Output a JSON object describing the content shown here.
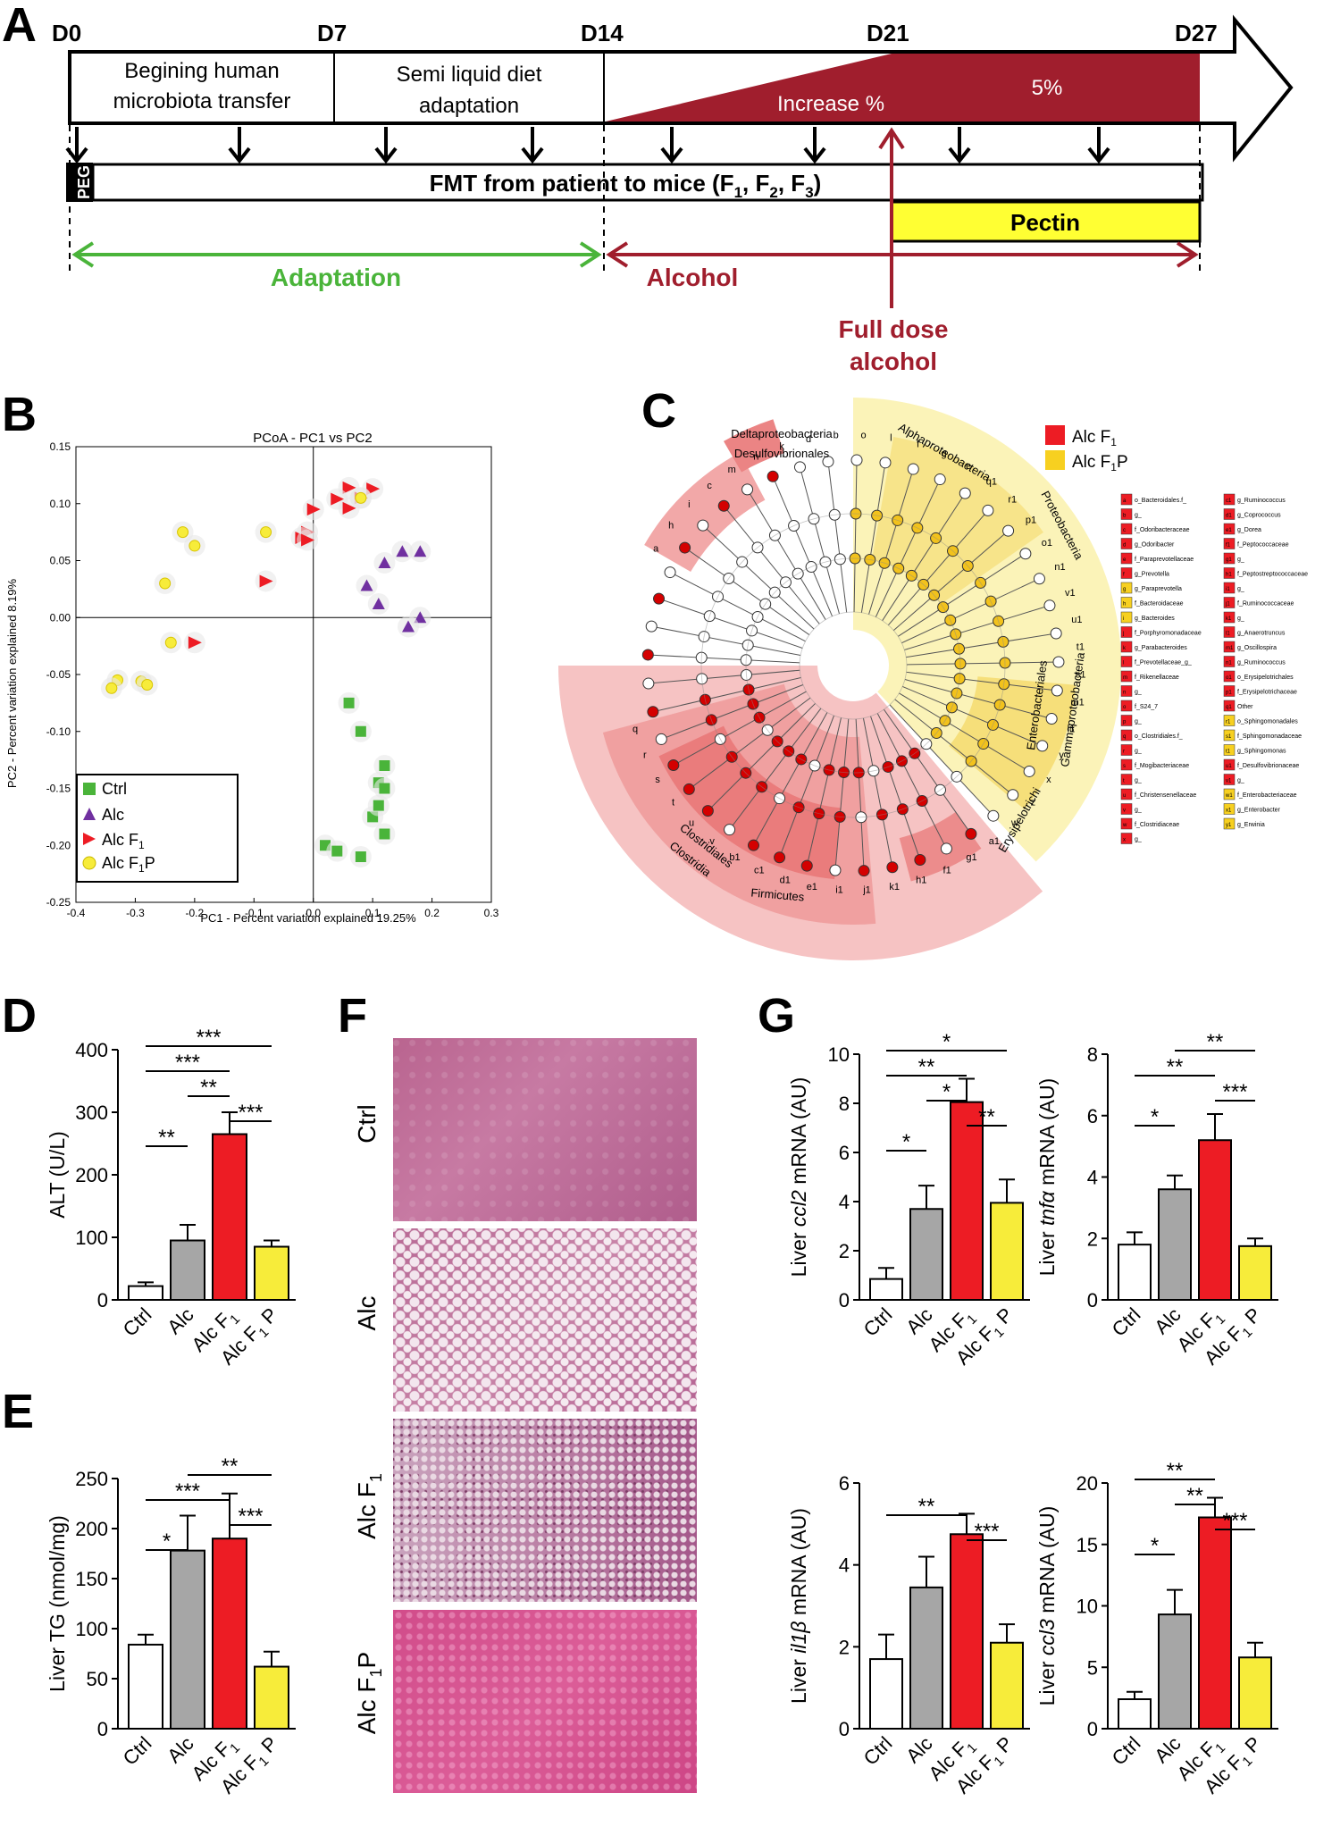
{
  "panels": {
    "A": "A",
    "B": "B",
    "C": "C",
    "D": "D",
    "E": "E",
    "F": "F",
    "G": "G"
  },
  "timeline": {
    "days": [
      "D0",
      "D7",
      "D14",
      "D21",
      "D27"
    ],
    "phase1": [
      "Begining human",
      "microbiota transfer"
    ],
    "phase2": [
      "Semi liquid diet",
      "adaptation"
    ],
    "increase": "Increase %",
    "five": "5%",
    "peg": "PEG",
    "fmt": "FMT from patient to mice (F",
    "fmt_sub": [
      "1",
      "2",
      "3"
    ],
    "pectin": "Pectin",
    "adaptation": "Adaptation",
    "alcohol": "Alcohol",
    "full_dose": [
      "Full dose",
      "alcohol"
    ]
  },
  "colors": {
    "ctrl": "#ffffff",
    "alc": "#a6a6a6",
    "alc_f1": "#ed1c24",
    "alc_f1p": "#f7ec3a",
    "green": "#4ab43a",
    "purple": "#7030a0",
    "darkred": "#a01e2d",
    "yellow": "#ffff33"
  },
  "labels": {
    "ctrl": "Ctrl",
    "alc": "Alc",
    "alc_f1": "Alc F",
    "alc_f1p": "Alc F",
    "sub1": "1",
    "p": "P",
    "p_sp": " P"
  },
  "chart_data": [
    {
      "id": "B",
      "type": "scatter",
      "title": "PCoA - PC1 vs PC2",
      "xlabel": "PC1 - Percent variation explained 19.25%",
      "ylabel": "PC2 - Percent variation explained 8.19%",
      "xlim": [
        -0.4,
        0.3
      ],
      "ylim": [
        -0.25,
        0.15
      ],
      "xticks": [
        "-0.4",
        "-0.3",
        "-0.2",
        "-0.1",
        "0.0",
        "0.1",
        "0.2",
        "0.3"
      ],
      "yticks": [
        "0.15",
        "0.10",
        "0.05",
        "0.00",
        "-0.05",
        "-0.10",
        "-0.15",
        "-0.20",
        "-0.25"
      ],
      "legend": [
        "Ctrl",
        "Alc",
        "Alc F",
        "Alc F"
      ],
      "series": [
        {
          "name": "Ctrl",
          "points": [
            [
              0.06,
              -0.075
            ],
            [
              0.08,
              -0.1
            ],
            [
              0.12,
              -0.13
            ],
            [
              0.11,
              -0.145
            ],
            [
              0.12,
              -0.15
            ],
            [
              0.1,
              -0.175
            ],
            [
              0.12,
              -0.19
            ],
            [
              0.02,
              -0.2
            ],
            [
              0.04,
              -0.205
            ],
            [
              0.08,
              -0.21
            ],
            [
              0.11,
              -0.165
            ]
          ]
        },
        {
          "name": "Alc",
          "points": [
            [
              0.15,
              0.058
            ],
            [
              0.18,
              0.058
            ],
            [
              0.12,
              0.048
            ],
            [
              0.09,
              0.028
            ],
            [
              0.18,
              0.0
            ],
            [
              0.16,
              -0.008
            ],
            [
              0.11,
              0.012
            ]
          ]
        },
        {
          "name": "Alc F1",
          "points": [
            [
              0.06,
              0.114
            ],
            [
              0.1,
              0.113
            ],
            [
              0.08,
              0.105
            ],
            [
              0.04,
              0.104
            ],
            [
              0.0,
              0.095
            ],
            [
              0.06,
              0.096
            ],
            [
              -0.01,
              0.075
            ],
            [
              -0.02,
              0.07
            ],
            [
              -0.01,
              0.068
            ],
            [
              -0.08,
              0.032
            ],
            [
              -0.2,
              -0.022
            ]
          ]
        },
        {
          "name": "Alc F1P",
          "points": [
            [
              -0.22,
              0.075
            ],
            [
              -0.2,
              0.063
            ],
            [
              -0.08,
              0.075
            ],
            [
              -0.25,
              0.03
            ],
            [
              -0.24,
              -0.022
            ],
            [
              -0.33,
              -0.055
            ],
            [
              -0.34,
              -0.062
            ],
            [
              -0.29,
              -0.056
            ],
            [
              -0.28,
              -0.059
            ],
            [
              0.08,
              0.105
            ]
          ]
        }
      ]
    },
    {
      "id": "D",
      "type": "bar",
      "ylabel": "ALT (U/L)",
      "ylim": [
        0,
        400
      ],
      "yticks": [
        "0",
        "100",
        "200",
        "300",
        "400"
      ],
      "categories": [
        "Ctrl",
        "Alc",
        "Alc F1",
        "Alc F1 P"
      ],
      "values": [
        22,
        95,
        265,
        85
      ],
      "errors": [
        6,
        25,
        35,
        10
      ],
      "significance": [
        {
          "from": 0,
          "to": 3,
          "label": "***"
        },
        {
          "from": 0,
          "to": 2,
          "label": "***"
        },
        {
          "from": 1,
          "to": 2,
          "label": "**"
        },
        {
          "from": 2,
          "to": 3,
          "label": "***"
        },
        {
          "from": 0,
          "to": 1,
          "label": "**"
        }
      ]
    },
    {
      "id": "E",
      "type": "bar",
      "ylabel": "Liver TG (nmol/mg)",
      "ylim": [
        0,
        250
      ],
      "yticks": [
        "0",
        "50",
        "100",
        "150",
        "200",
        "250"
      ],
      "categories": [
        "Ctrl",
        "Alc",
        "Alc F1",
        "Alc F1 P"
      ],
      "values": [
        84,
        178,
        190,
        62
      ],
      "errors": [
        10,
        35,
        45,
        15
      ],
      "significance": [
        {
          "from": 1,
          "to": 3,
          "label": "**"
        },
        {
          "from": 0,
          "to": 2,
          "label": "***"
        },
        {
          "from": 2,
          "to": 3,
          "label": "***"
        },
        {
          "from": 0,
          "to": 1,
          "label": "*"
        }
      ]
    },
    {
      "id": "G1",
      "type": "bar",
      "ylabel_pre": "Liver ",
      "ylabel_gene": "ccl2",
      "ylabel_post": " mRNA (AU)",
      "ylim": [
        0,
        10
      ],
      "yticks": [
        "0",
        "2",
        "4",
        "6",
        "8",
        "10"
      ],
      "categories": [
        "Ctrl",
        "Alc",
        "Alc F1",
        "Alc F1 P"
      ],
      "values": [
        0.85,
        3.7,
        8.05,
        3.95
      ],
      "errors": [
        0.45,
        0.95,
        0.95,
        0.95
      ],
      "significance": [
        {
          "from": 0,
          "to": 3,
          "label": "*"
        },
        {
          "from": 0,
          "to": 2,
          "label": "**"
        },
        {
          "from": 1,
          "to": 2,
          "label": "*"
        },
        {
          "from": 2,
          "to": 3,
          "label": "**"
        },
        {
          "from": 0,
          "to": 1,
          "label": "*"
        }
      ]
    },
    {
      "id": "G2",
      "type": "bar",
      "ylabel_pre": "Liver ",
      "ylabel_gene": "tnfα",
      "ylabel_post": " mRNA (AU)",
      "ylim": [
        0,
        8
      ],
      "yticks": [
        "0",
        "2",
        "4",
        "6",
        "8"
      ],
      "categories": [
        "Ctrl",
        "Alc",
        "Alc F1",
        "Alc F1 P"
      ],
      "values": [
        1.8,
        3.6,
        5.2,
        1.75
      ],
      "errors": [
        0.4,
        0.45,
        0.85,
        0.25
      ],
      "significance": [
        {
          "from": 1,
          "to": 3,
          "label": "**"
        },
        {
          "from": 0,
          "to": 2,
          "label": "**"
        },
        {
          "from": 2,
          "to": 3,
          "label": "***"
        },
        {
          "from": 0,
          "to": 1,
          "label": "*"
        }
      ]
    },
    {
      "id": "G3",
      "type": "bar",
      "ylabel_pre": "Liver ",
      "ylabel_gene": "il1β",
      "ylabel_post": " mRNA (AU)",
      "ylim": [
        0,
        6
      ],
      "yticks": [
        "0",
        "2",
        "4",
        "6"
      ],
      "categories": [
        "Ctrl",
        "Alc",
        "Alc F1",
        "Alc F1 P"
      ],
      "values": [
        1.7,
        3.45,
        4.75,
        2.1
      ],
      "errors": [
        0.6,
        0.75,
        0.5,
        0.45
      ],
      "significance": [
        {
          "from": 0,
          "to": 2,
          "label": "**"
        },
        {
          "from": 2,
          "to": 3,
          "label": "***"
        }
      ]
    },
    {
      "id": "G4",
      "type": "bar",
      "ylabel_pre": "Liver ",
      "ylabel_gene": "ccl3",
      "ylabel_post": " mRNA (AU)",
      "ylim": [
        0,
        20
      ],
      "yticks": [
        "0",
        "5",
        "10",
        "15",
        "20"
      ],
      "categories": [
        "Ctrl",
        "Alc",
        "Alc F1",
        "Alc F1 P"
      ],
      "values": [
        2.4,
        9.3,
        17.2,
        5.8
      ],
      "errors": [
        0.6,
        2.0,
        1.6,
        1.2
      ],
      "significance": [
        {
          "from": 0,
          "to": 2,
          "label": "**"
        },
        {
          "from": 1,
          "to": 2,
          "label": "**"
        },
        {
          "from": 2,
          "to": 3,
          "label": "***"
        },
        {
          "from": 0,
          "to": 1,
          "label": "*"
        }
      ]
    }
  ],
  "cladogram": {
    "legend": [
      "Alc F",
      "Alc F"
    ],
    "clades": [
      "Deltaproteobacteria",
      "Desulfovibrionales",
      "Alphaproteobacteria",
      "Proteobacteria",
      "Gammaproteobacteria",
      "Enterobacteriales",
      "Erysipelotrichi",
      "Clostridiales",
      "Clostridia",
      "Firmicutes"
    ],
    "node_letters": [
      "a",
      "h",
      "i",
      "c",
      "m",
      "n",
      "k",
      "d",
      "b",
      "o",
      "l",
      "f",
      "g",
      "e",
      "q1",
      "r1",
      "p1",
      "o1",
      "n1",
      "v1",
      "u1",
      "t1",
      "s1",
      "m1",
      "l1",
      "y",
      "x",
      "z",
      "w",
      "a1",
      "g1",
      "f1",
      "h1",
      "k1",
      "j1",
      "i1",
      "e1",
      "d1",
      "c1",
      "b1",
      "v",
      "u",
      "t",
      "s",
      "r",
      "q"
    ],
    "key_left": [
      {
        "k": "a",
        "t": "o_Bacteroidales.f_",
        "c": "r"
      },
      {
        "k": "b",
        "t": "g_",
        "c": "r"
      },
      {
        "k": "c",
        "t": "f_Odoribacteraceae",
        "c": "r"
      },
      {
        "k": "d",
        "t": "g_Odoribacter",
        "c": "r"
      },
      {
        "k": "e",
        "t": "f_Paraprevotellaceae",
        "c": "r"
      },
      {
        "k": "f",
        "t": "g_Prevotella",
        "c": "r"
      },
      {
        "k": "g",
        "t": "g_Paraprevotella",
        "c": "y"
      },
      {
        "k": "h",
        "t": "f_Bacteroidaceae",
        "c": "y"
      },
      {
        "k": "i",
        "t": "g_Bacteroides",
        "c": "y"
      },
      {
        "k": "j",
        "t": "f_Porphyromonadaceae",
        "c": "r"
      },
      {
        "k": "k",
        "t": "g_Parabacteroides",
        "c": "r"
      },
      {
        "k": "l",
        "t": "f_Prevotellaceae_g_",
        "c": "r"
      },
      {
        "k": "m",
        "t": "f_Rikenellaceae",
        "c": "r"
      },
      {
        "k": "n",
        "t": "g_",
        "c": "r"
      },
      {
        "k": "o",
        "t": "f_S24_7",
        "c": "r"
      },
      {
        "k": "p",
        "t": "g_",
        "c": "r"
      },
      {
        "k": "q",
        "t": "o_Clostridiales.f_",
        "c": "r"
      },
      {
        "k": "r",
        "t": "g_",
        "c": "r"
      },
      {
        "k": "s",
        "t": "f_Mogibacteriaceae",
        "c": "r"
      },
      {
        "k": "t",
        "t": "g_",
        "c": "r"
      },
      {
        "k": "u",
        "t": "f_Christensenellaceae",
        "c": "r"
      },
      {
        "k": "v",
        "t": "g_",
        "c": "r"
      },
      {
        "k": "w",
        "t": "f_Clostridiaceae",
        "c": "r"
      },
      {
        "k": "x",
        "t": "g_",
        "c": "r"
      }
    ],
    "key_right": [
      {
        "k": "c1",
        "t": "g_Ruminococcus",
        "c": "r"
      },
      {
        "k": "d1",
        "t": "g_Coprococcus",
        "c": "r"
      },
      {
        "k": "e1",
        "t": "g_Dorea",
        "c": "r"
      },
      {
        "k": "f1",
        "t": "f_Peptococcaceae",
        "c": "r"
      },
      {
        "k": "g1",
        "t": "g_",
        "c": "r"
      },
      {
        "k": "h1",
        "t": "f_Peptostreptococcaceae",
        "c": "r"
      },
      {
        "k": "i1",
        "t": "g_",
        "c": "r"
      },
      {
        "k": "j1",
        "t": "f_Ruminococcaceae",
        "c": "r"
      },
      {
        "k": "k1",
        "t": "g_",
        "c": "r"
      },
      {
        "k": "l1",
        "t": "g_Anaerotruncus",
        "c": "r"
      },
      {
        "k": "m1",
        "t": "g_Oscillospira",
        "c": "r"
      },
      {
        "k": "n1",
        "t": "g_Ruminococcus",
        "c": "r"
      },
      {
        "k": "o1",
        "t": "o_Erysipelotrichales",
        "c": "r"
      },
      {
        "k": "p1",
        "t": "f_Erysipelotrichaceae",
        "c": "r"
      },
      {
        "k": "q1",
        "t": "Other",
        "c": "r"
      },
      {
        "k": "r1",
        "t": "o_Sphingomonadales",
        "c": "y"
      },
      {
        "k": "s1",
        "t": "f_Sphingomonadaceae",
        "c": "y"
      },
      {
        "k": "t1",
        "t": "g_Sphingomonas",
        "c": "y"
      },
      {
        "k": "u1",
        "t": "f_Desulfovibrionaceae",
        "c": "r"
      },
      {
        "k": "v1",
        "t": "g_",
        "c": "r"
      },
      {
        "k": "w1",
        "t": "f_Enterobacteriaceae",
        "c": "y"
      },
      {
        "k": "x1",
        "t": "g_Enterobacter",
        "c": "y"
      },
      {
        "k": "y1",
        "t": "g_Erwinia",
        "c": "y"
      }
    ]
  },
  "histology": {
    "rows": [
      "Ctrl",
      "Alc",
      "Alc F",
      "Alc F"
    ]
  }
}
